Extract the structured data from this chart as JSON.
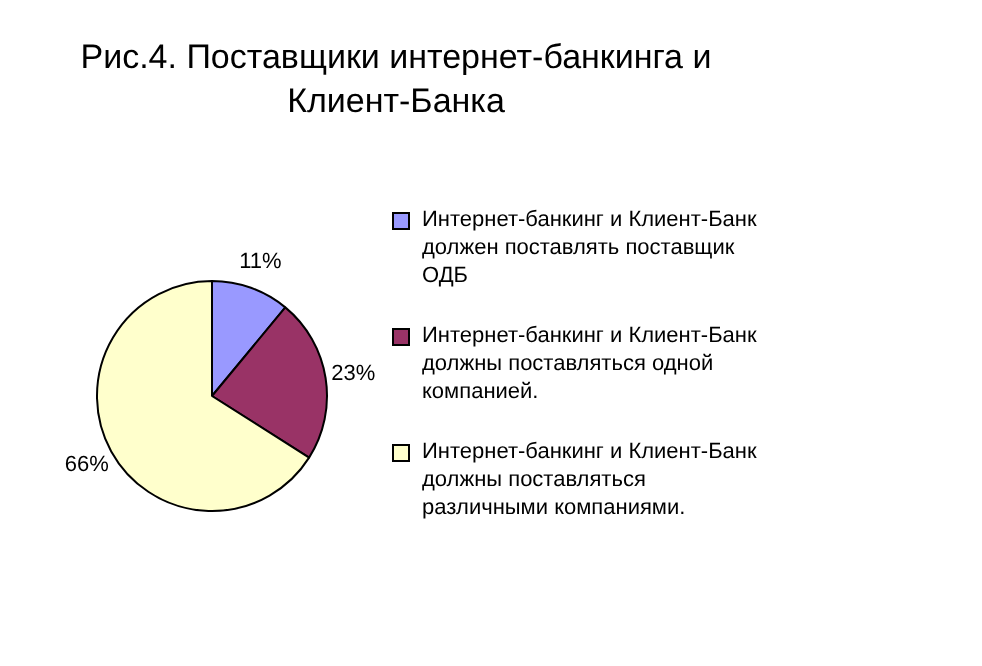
{
  "chart_data": {
    "type": "pie",
    "title": "Рис.4. Поставщики интернет-банкинга и Клиент-Банка",
    "categories": [
      "Интернет-банкинг и Клиент-Банк должен поставлять поставщик ОДБ",
      "Интернет-банкинг и Клиент-Банк должны поставляться одной компанией.",
      "Интернет-банкинг и Клиент-Банк должны поставляться различными компаниями."
    ],
    "values": [
      11,
      23,
      66
    ],
    "colors": [
      "#9999ff",
      "#993366",
      "#ffffcc"
    ],
    "value_labels": [
      "11%",
      "23%",
      "66%"
    ],
    "legend": "right"
  }
}
